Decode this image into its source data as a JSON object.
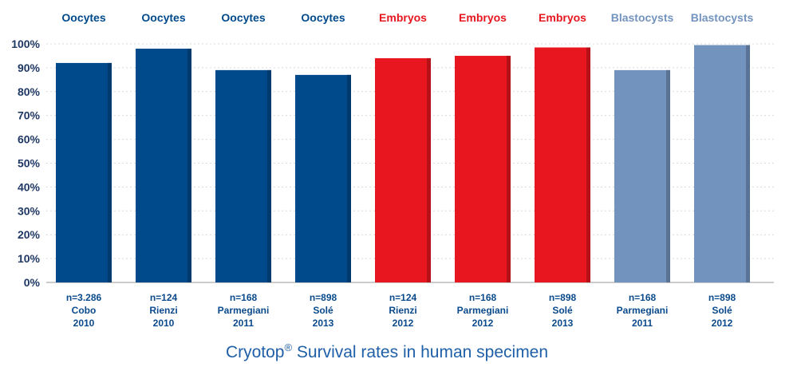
{
  "caption": {
    "brand": "Cryotop",
    "mark": "®",
    "text": " Survival rates in human specimen"
  },
  "colors": {
    "Oocytes": "#004a8c",
    "Embryos": "#e8161f",
    "Blastocysts": "#7393bf",
    "axis_text": "#1f3864",
    "grid": "#d9d9d9"
  },
  "chart_data": {
    "type": "bar",
    "title": "Cryotop® Survival rates in human specimen",
    "xlabel": "",
    "ylabel": "",
    "ylim": [
      0,
      100
    ],
    "ytick_labels": [
      "0%",
      "10%",
      "20%",
      "30%",
      "40%",
      "50%",
      "60%",
      "70%",
      "80%",
      "90%",
      "100%"
    ],
    "grid": true,
    "categories": [
      {
        "type": "Oocytes",
        "lines": [
          "n=3.286",
          "Cobo",
          "2010"
        ]
      },
      {
        "type": "Oocytes",
        "lines": [
          "n=124",
          "Rienzi",
          "2010"
        ]
      },
      {
        "type": "Oocytes",
        "lines": [
          "n=168",
          "Parmegiani",
          "2011"
        ]
      },
      {
        "type": "Oocytes",
        "lines": [
          "n=898",
          "Solé",
          "2013"
        ]
      },
      {
        "type": "Embryos",
        "lines": [
          "n=124",
          "Rienzi",
          "2012"
        ]
      },
      {
        "type": "Embryos",
        "lines": [
          "n=168",
          "Parmegiani",
          "2012"
        ]
      },
      {
        "type": "Embryos",
        "lines": [
          "n=898",
          "Solé",
          "2013"
        ]
      },
      {
        "type": "Blastocysts",
        "lines": [
          "n=168",
          "Parmegiani",
          "2011"
        ]
      },
      {
        "type": "Blastocysts",
        "lines": [
          "n=898",
          "Solé",
          "2012"
        ]
      }
    ],
    "values": [
      92,
      98,
      89,
      87,
      94,
      95,
      98.5,
      89,
      99.5
    ]
  }
}
